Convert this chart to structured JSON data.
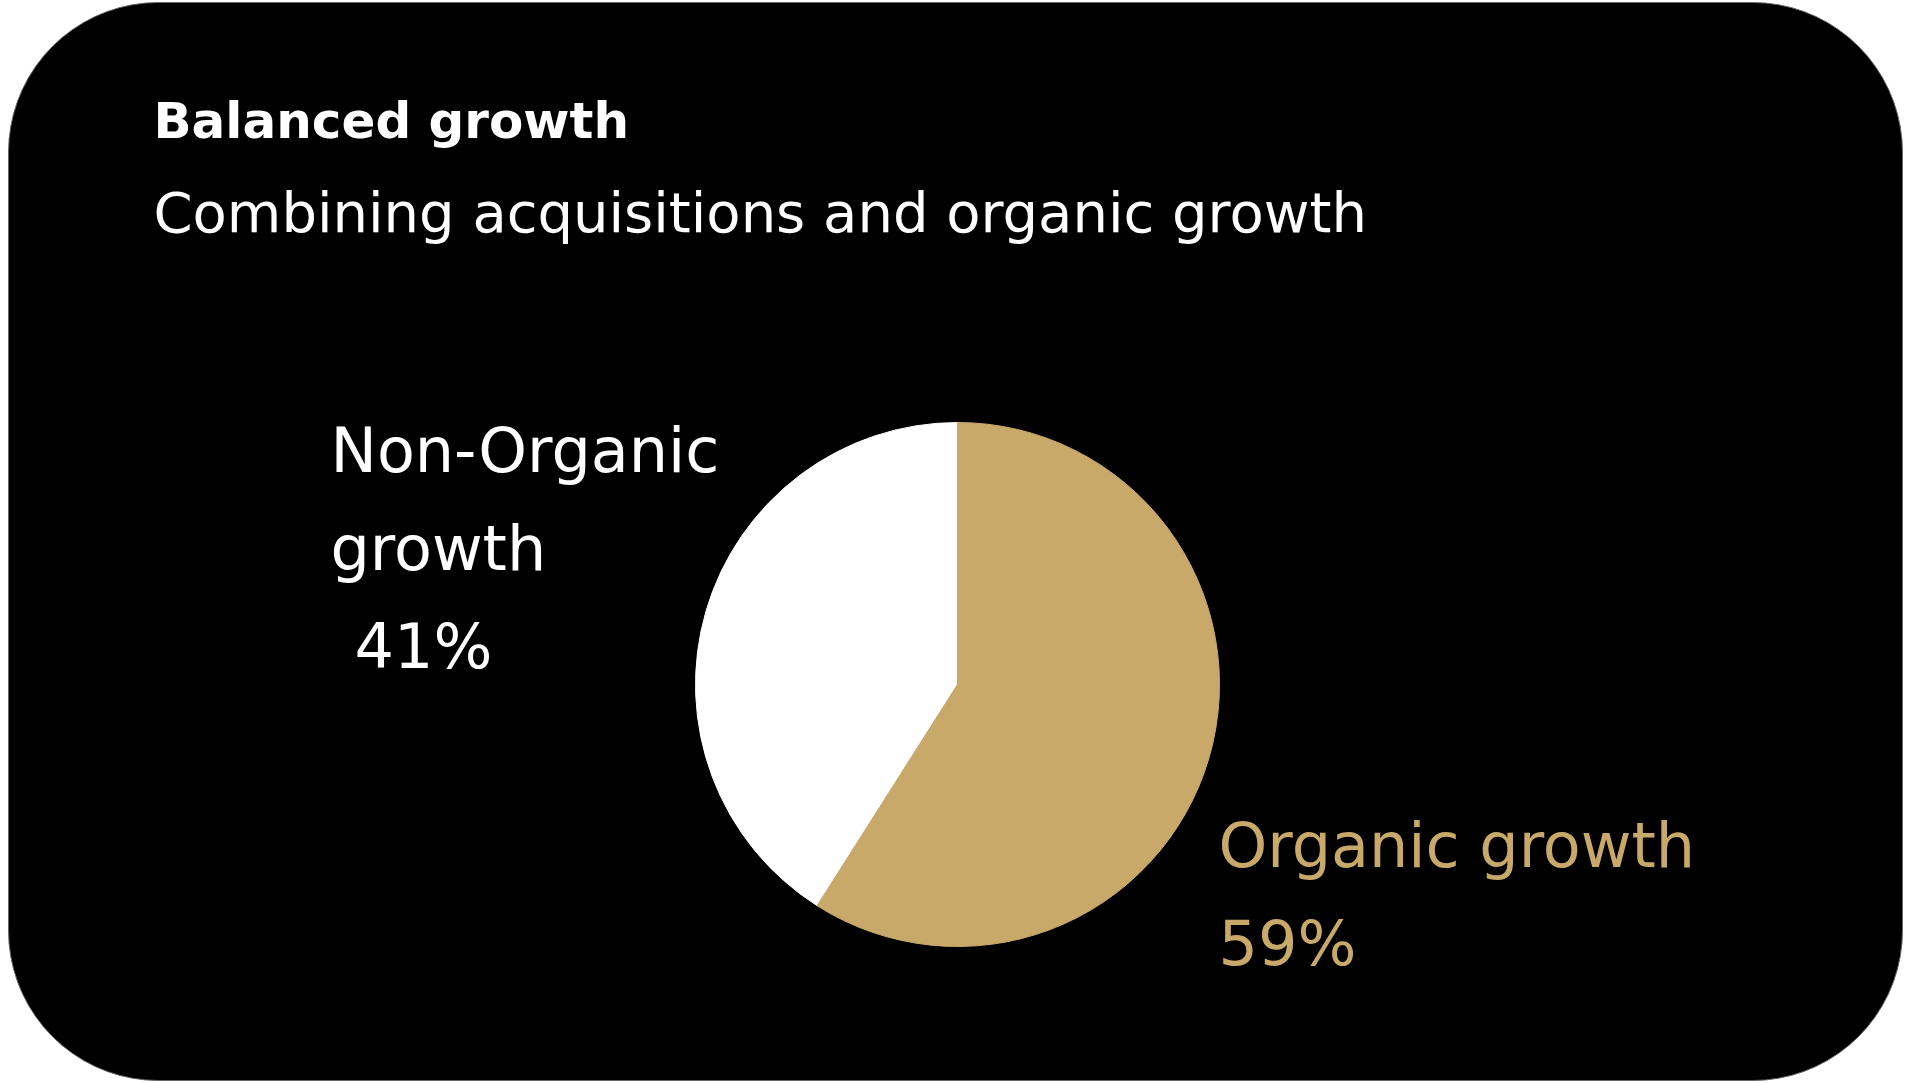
{
  "chart_data": {
    "type": "pie",
    "title": "Balanced growth",
    "subtitle": "Combining acquisitions and organic growth",
    "categories": [
      "Non-Organic growth",
      "Organic growth"
    ],
    "values": [
      41,
      59
    ],
    "value_labels": [
      "41%",
      "59%"
    ],
    "colors": [
      "#ffffff",
      "#c9a96a"
    ]
  }
}
